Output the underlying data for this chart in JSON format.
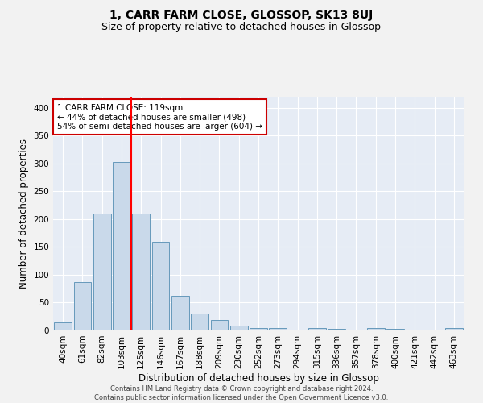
{
  "title": "1, CARR FARM CLOSE, GLOSSOP, SK13 8UJ",
  "subtitle": "Size of property relative to detached houses in Glossop",
  "xlabel": "Distribution of detached houses by size in Glossop",
  "ylabel": "Number of detached properties",
  "bar_labels": [
    "40sqm",
    "61sqm",
    "82sqm",
    "103sqm",
    "125sqm",
    "146sqm",
    "167sqm",
    "188sqm",
    "209sqm",
    "230sqm",
    "252sqm",
    "273sqm",
    "294sqm",
    "315sqm",
    "336sqm",
    "357sqm",
    "378sqm",
    "400sqm",
    "421sqm",
    "442sqm",
    "463sqm"
  ],
  "bar_values": [
    15,
    87,
    210,
    303,
    210,
    160,
    63,
    31,
    19,
    9,
    5,
    4,
    2,
    5,
    3,
    2,
    4,
    3,
    1,
    1,
    4
  ],
  "bar_color": "#c9d9ea",
  "bar_edge_color": "#6699bb",
  "background_color": "#e6ecf5",
  "grid_color": "#ffffff",
  "annotation_text": "1 CARR FARM CLOSE: 119sqm\n← 44% of detached houses are smaller (498)\n54% of semi-detached houses are larger (604) →",
  "annotation_box_color": "#ffffff",
  "annotation_box_edge": "#cc0000",
  "ylim": [
    0,
    420
  ],
  "yticks": [
    0,
    50,
    100,
    150,
    200,
    250,
    300,
    350,
    400
  ],
  "footer": "Contains HM Land Registry data © Crown copyright and database right 2024.\nContains public sector information licensed under the Open Government Licence v3.0.",
  "fig_bg": "#f2f2f2",
  "title_fontsize": 10,
  "subtitle_fontsize": 9,
  "ylabel_fontsize": 8.5,
  "xlabel_fontsize": 8.5,
  "tick_fontsize": 7.5,
  "annot_fontsize": 7.5,
  "footer_fontsize": 6
}
